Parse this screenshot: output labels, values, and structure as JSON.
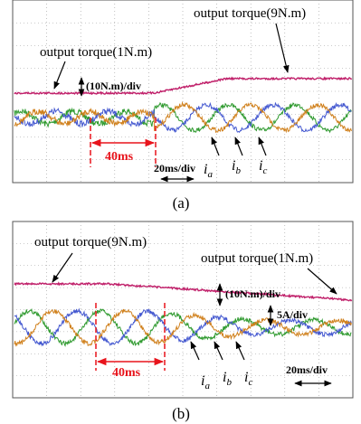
{
  "panel_a": {
    "torque_left": "output torque(1N.m)",
    "torque_right": "output torque(9N.m)",
    "scale_torque": "(10N.m)/div",
    "time_span": "40ms",
    "scale_time": "20ms/div",
    "currents": [
      {
        "main": "i",
        "sub": "a"
      },
      {
        "main": "i",
        "sub": "b"
      },
      {
        "main": "i",
        "sub": "c"
      }
    ],
    "caption": "(a)"
  },
  "panel_b": {
    "torque_left": "output torque(9N.m)",
    "torque_right": "output torque(1N.m)",
    "scale_torque": "(10N.m)/div",
    "scale_current": "5A/div",
    "time_span": "40ms",
    "scale_time": "20ms/div",
    "currents": [
      {
        "main": "i",
        "sub": "a"
      },
      {
        "main": "i",
        "sub": "b"
      },
      {
        "main": "i",
        "sub": "c"
      }
    ],
    "caption": "(b)"
  }
}
